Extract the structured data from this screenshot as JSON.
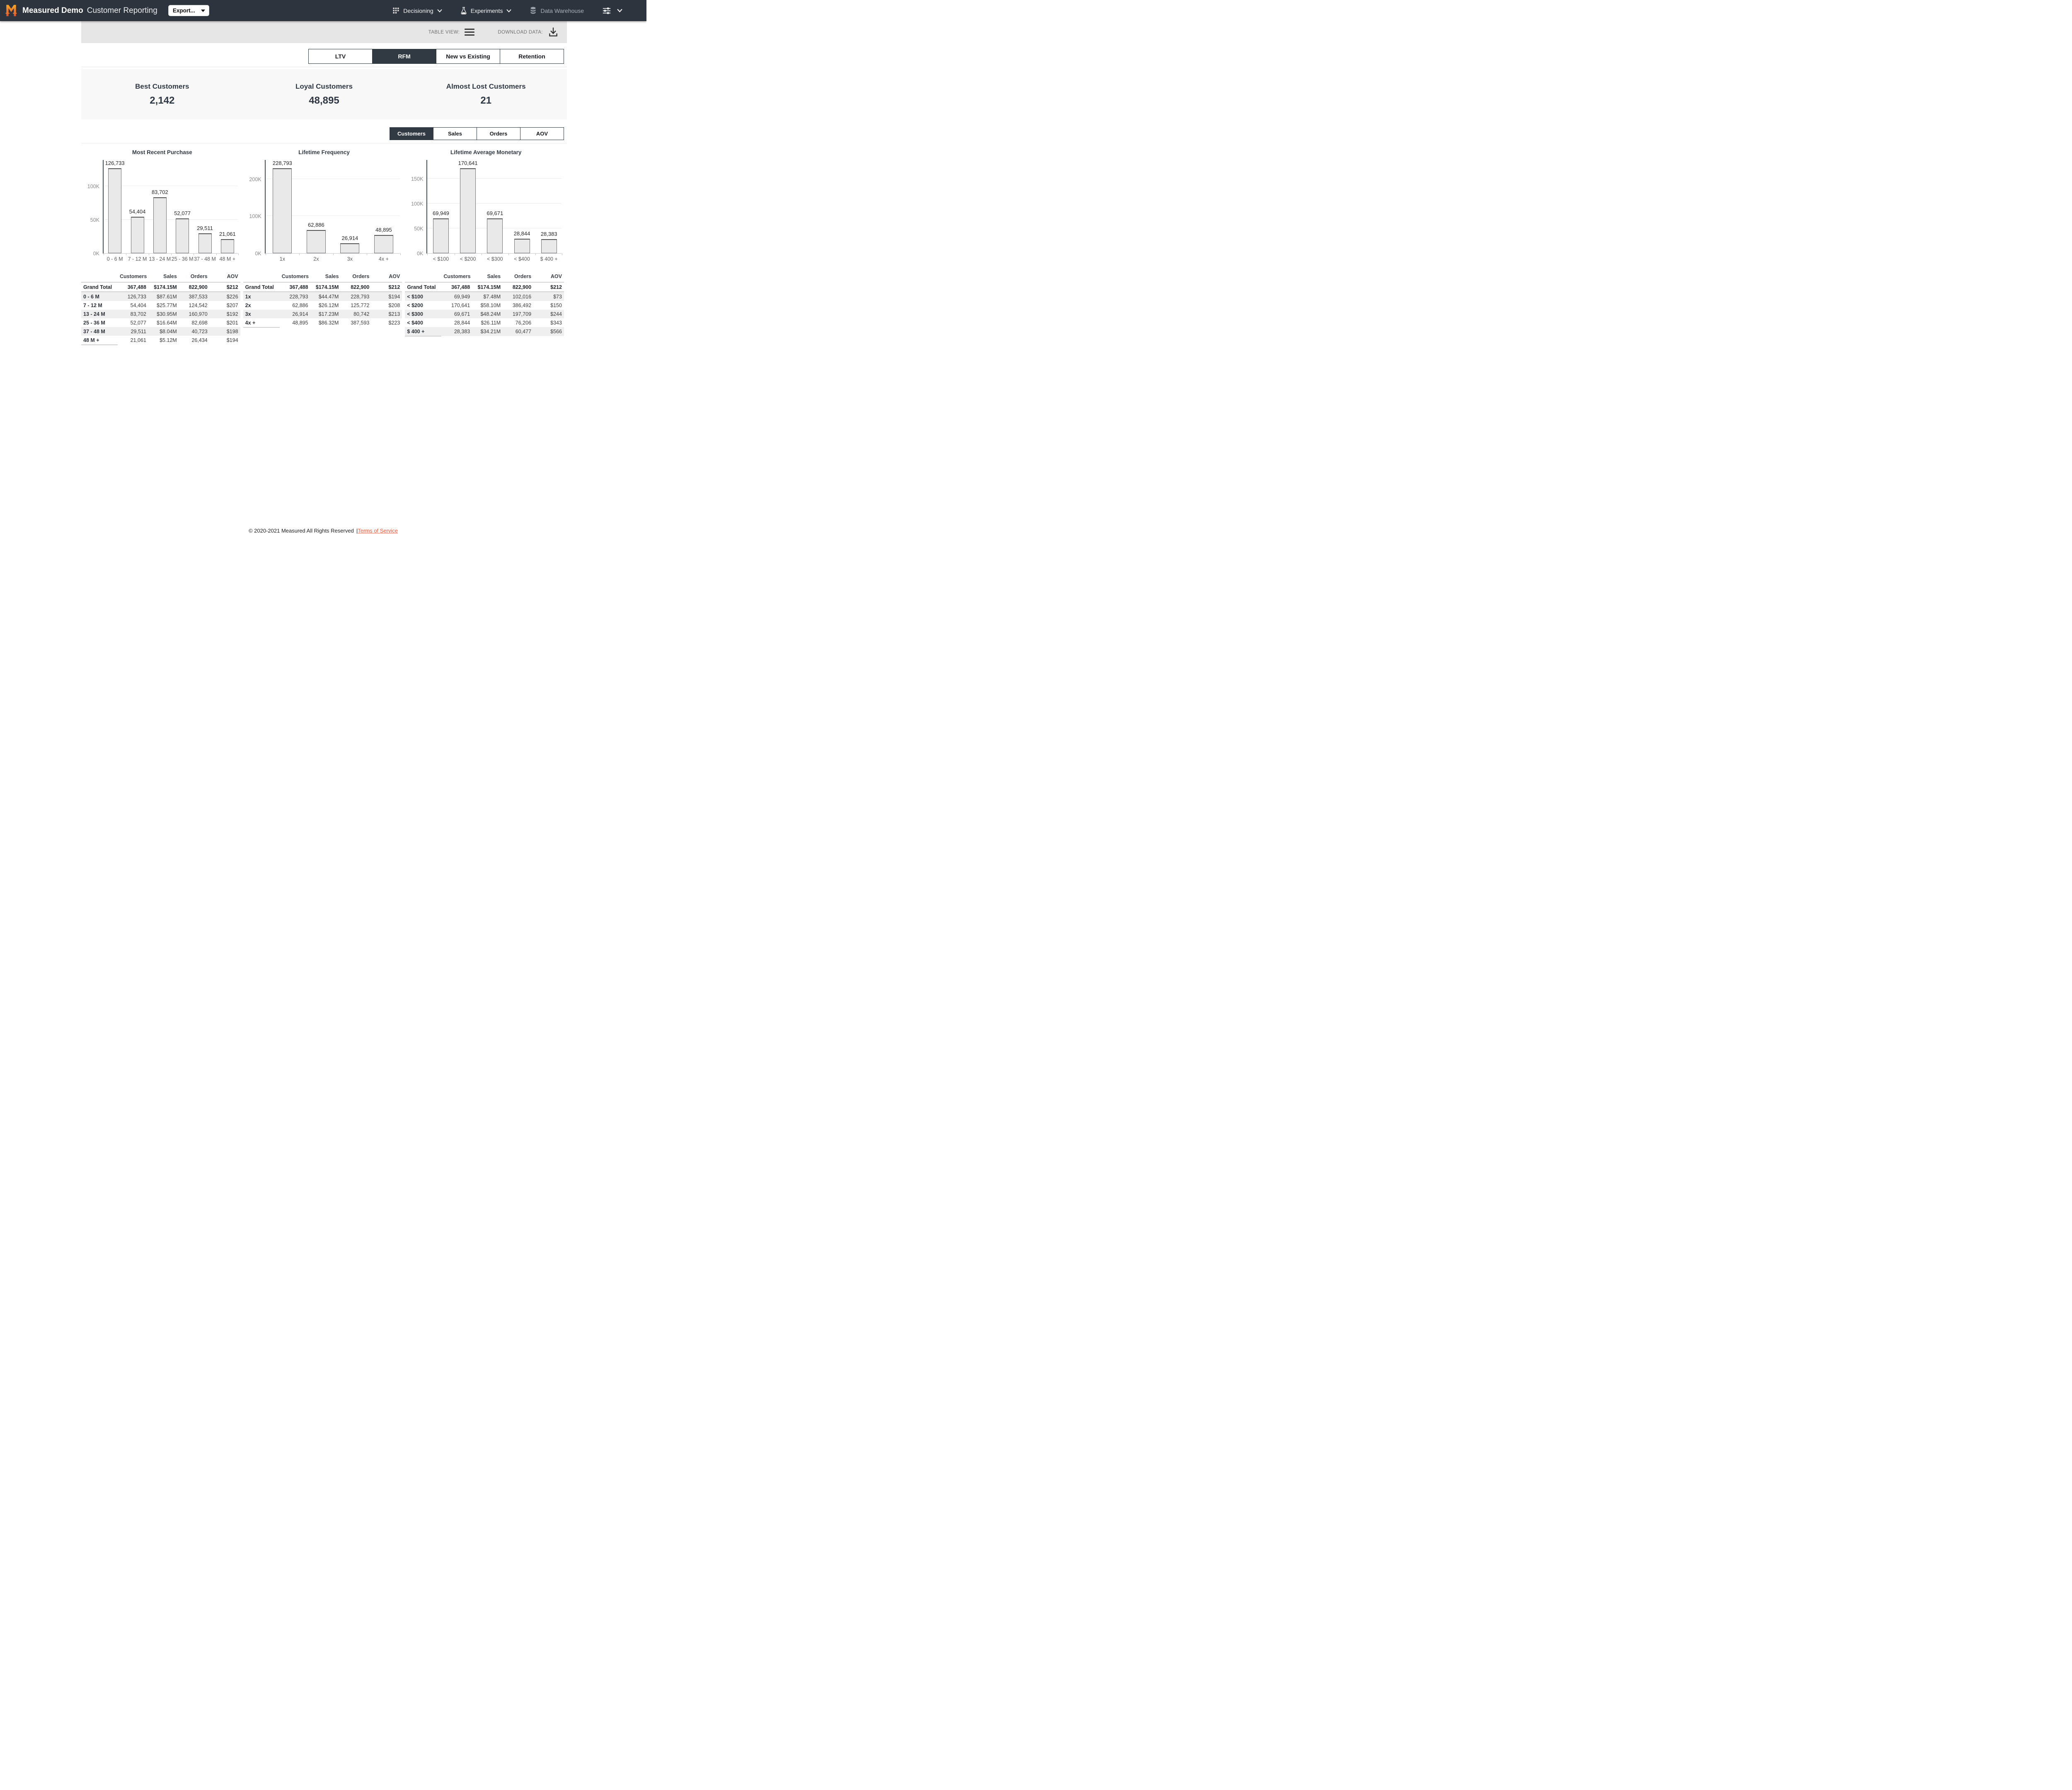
{
  "header": {
    "brand": "Measured Demo",
    "app_title": "Customer Reporting",
    "export_label": "Export...",
    "nav": [
      {
        "label": "Decisioning",
        "icon": "grid-icon"
      },
      {
        "label": "Experiments",
        "icon": "flask-icon"
      },
      {
        "label": "Data Warehouse",
        "icon": "database-icon"
      }
    ]
  },
  "toolbar": {
    "table_view_label": "TABLE VIEW:",
    "download_label": "DOWNLOAD DATA:"
  },
  "view_tabs": [
    {
      "label": "LTV",
      "active": false
    },
    {
      "label": "RFM",
      "active": true
    },
    {
      "label": "New vs Existing",
      "active": false
    },
    {
      "label": "Retention",
      "active": false
    }
  ],
  "summary_cards": [
    {
      "title": "Best Customers",
      "value": "2,142"
    },
    {
      "title": "Loyal Customers",
      "value": "48,895"
    },
    {
      "title": "Almost Lost Customers",
      "value": "21"
    }
  ],
  "metric_tabs": [
    {
      "label": "Customers",
      "active": true
    },
    {
      "label": "Sales",
      "active": false
    },
    {
      "label": "Orders",
      "active": false
    },
    {
      "label": "AOV",
      "active": false
    }
  ],
  "chart_data": [
    {
      "type": "bar",
      "title": "Most Recent Purchase",
      "categories": [
        "0 - 6 M",
        "7 - 12 M",
        "13 - 24 M",
        "25 - 36 M",
        "37 - 48 M",
        "48 M +"
      ],
      "values": [
        126733,
        54404,
        83702,
        52077,
        29511,
        21061
      ],
      "value_labels": [
        "126,733",
        "54,404",
        "83,702",
        "52,077",
        "29,511",
        "21,061"
      ],
      "yticks": [
        {
          "label": "0K",
          "value": 0
        },
        {
          "label": "50K",
          "value": 50000
        },
        {
          "label": "100K",
          "value": 100000
        }
      ],
      "ylim": [
        0,
        126733
      ],
      "xlabel": "",
      "ylabel": "",
      "grid": true,
      "legend": false
    },
    {
      "type": "bar",
      "title": "Lifetime Frequency",
      "categories": [
        "1x",
        "2x",
        "3x",
        "4x +"
      ],
      "values": [
        228793,
        62886,
        26914,
        48895
      ],
      "value_labels": [
        "228,793",
        "62,886",
        "26,914",
        "48,895"
      ],
      "yticks": [
        {
          "label": "0K",
          "value": 0
        },
        {
          "label": "100K",
          "value": 100000
        },
        {
          "label": "200K",
          "value": 200000
        }
      ],
      "ylim": [
        0,
        228793
      ],
      "xlabel": "",
      "ylabel": "",
      "grid": true,
      "legend": false
    },
    {
      "type": "bar",
      "title": "Lifetime Average Monetary",
      "categories": [
        "< $100",
        "< $200",
        "< $300",
        "< $400",
        "$ 400 +"
      ],
      "values": [
        69949,
        170641,
        69671,
        28844,
        28383
      ],
      "value_labels": [
        "69,949",
        "170,641",
        "69,671",
        "28,844",
        "28,383"
      ],
      "yticks": [
        {
          "label": "0K",
          "value": 0
        },
        {
          "label": "50K",
          "value": 50000
        },
        {
          "label": "100K",
          "value": 100000
        },
        {
          "label": "150K",
          "value": 150000
        }
      ],
      "ylim": [
        0,
        170641
      ],
      "xlabel": "",
      "ylabel": "",
      "grid": true,
      "legend": false
    }
  ],
  "tables": [
    {
      "headers": [
        "Customers",
        "Sales",
        "Orders",
        "AOV"
      ],
      "grand_total": {
        "label": "Grand Total",
        "cells": [
          "367,488",
          "$174.15M",
          "822,900",
          "$212"
        ]
      },
      "rows": [
        {
          "label": "0 - 6 M",
          "cells": [
            "126,733",
            "$87.61M",
            "387,533",
            "$226"
          ]
        },
        {
          "label": "7 - 12 M",
          "cells": [
            "54,404",
            "$25.77M",
            "124,542",
            "$207"
          ]
        },
        {
          "label": "13 - 24 M",
          "cells": [
            "83,702",
            "$30.95M",
            "160,970",
            "$192"
          ]
        },
        {
          "label": "25 - 36 M",
          "cells": [
            "52,077",
            "$16.64M",
            "82,698",
            "$201"
          ]
        },
        {
          "label": "37 - 48 M",
          "cells": [
            "29,511",
            "$8.04M",
            "40,723",
            "$198"
          ]
        },
        {
          "label": "48 M +",
          "cells": [
            "21,061",
            "$5.12M",
            "26,434",
            "$194"
          ]
        }
      ]
    },
    {
      "headers": [
        "Customers",
        "Sales",
        "Orders",
        "AOV"
      ],
      "grand_total": {
        "label": "Grand Total",
        "cells": [
          "367,488",
          "$174.15M",
          "822,900",
          "$212"
        ]
      },
      "rows": [
        {
          "label": "1x",
          "cells": [
            "228,793",
            "$44.47M",
            "228,793",
            "$194"
          ]
        },
        {
          "label": "2x",
          "cells": [
            "62,886",
            "$26.12M",
            "125,772",
            "$208"
          ]
        },
        {
          "label": "3x",
          "cells": [
            "26,914",
            "$17.23M",
            "80,742",
            "$213"
          ]
        },
        {
          "label": "4x +",
          "cells": [
            "48,895",
            "$86.32M",
            "387,593",
            "$223"
          ]
        }
      ]
    },
    {
      "headers": [
        "Customers",
        "Sales",
        "Orders",
        "AOV"
      ],
      "grand_total": {
        "label": "Grand Total",
        "cells": [
          "367,488",
          "$174.15M",
          "822,900",
          "$212"
        ]
      },
      "rows": [
        {
          "label": "< $100",
          "cells": [
            "69,949",
            "$7.48M",
            "102,016",
            "$73"
          ]
        },
        {
          "label": "< $200",
          "cells": [
            "170,641",
            "$58.10M",
            "386,492",
            "$150"
          ]
        },
        {
          "label": "< $300",
          "cells": [
            "69,671",
            "$48.24M",
            "197,709",
            "$244"
          ]
        },
        {
          "label": "< $400",
          "cells": [
            "28,844",
            "$26.11M",
            "76,206",
            "$343"
          ]
        },
        {
          "label": "$ 400 +",
          "cells": [
            "28,383",
            "$34.21M",
            "60,477",
            "$566"
          ]
        }
      ]
    }
  ],
  "footer": {
    "copyright": "© 2020-2021 Measured All Rights Reserved",
    "divider": "|",
    "terms_link": "Terms of Service"
  },
  "colors": {
    "navbar": "#2d343d",
    "selected_tab": "#313943",
    "toolbar_gray": "#e6e6e6",
    "summary_bg": "#f8f8f9",
    "bar_fill": "#e9e9e9",
    "bar_border": "#6f6f6f",
    "accent_orange": "#f05c3c",
    "logo_gradient_top": "#f7a829",
    "logo_gradient_bottom": "#e14f2b"
  }
}
